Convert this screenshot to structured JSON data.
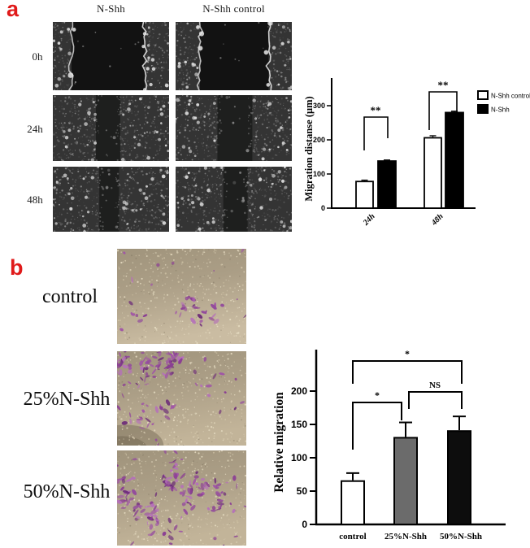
{
  "panel_a": {
    "label": "a",
    "col_headers": [
      "N-Shh",
      "N-Shh control"
    ],
    "row_labels": [
      "0h",
      "24h",
      "48h"
    ]
  },
  "panel_b": {
    "label": "b",
    "row_labels": [
      "control",
      "25%N-Shh",
      "50%N-Shh"
    ]
  },
  "accent_colors": {
    "panel_label_red": "#e01a1a",
    "gray_bar": "#6b6b6b",
    "black_bar": "#0d0d0d"
  },
  "chart_data": [
    {
      "type": "bar",
      "title": "",
      "ylabel": "Migration distanse (μm)",
      "xlabel": "",
      "categories": [
        "24h",
        "48h"
      ],
      "series": [
        {
          "name": "N-Shh control",
          "values": [
            78,
            206
          ],
          "errors": [
            4,
            6
          ],
          "color": "#ffffff"
        },
        {
          "name": "N-Shh",
          "values": [
            138,
            280
          ],
          "errors": [
            3,
            4
          ],
          "color": "#000000"
        }
      ],
      "yticks": [
        0,
        100,
        200,
        300
      ],
      "ylim": [
        0,
        375
      ],
      "grid": false,
      "legend_position": "right",
      "annotations": [
        {
          "label": "**",
          "group": "24h"
        },
        {
          "label": "**",
          "group": "48h"
        }
      ]
    },
    {
      "type": "bar",
      "title": "",
      "ylabel": "Relative migration",
      "xlabel": "",
      "categories": [
        "control",
        "25%N-Shh",
        "50%N-Shh"
      ],
      "values": [
        65,
        130,
        140
      ],
      "errors": [
        12,
        23,
        22
      ],
      "bar_colors": [
        "#ffffff",
        "#6b6b6b",
        "#0d0d0d"
      ],
      "yticks": [
        0,
        50,
        100,
        150,
        200
      ],
      "ylim": [
        0,
        260
      ],
      "grid": false,
      "annotations": [
        {
          "label": "*",
          "from": "control",
          "to": "25%N-Shh"
        },
        {
          "label": "NS",
          "from": "25%N-Shh",
          "to": "50%N-Shh"
        },
        {
          "label": "*",
          "from": "control",
          "to": "50%N-Shh"
        }
      ]
    }
  ]
}
